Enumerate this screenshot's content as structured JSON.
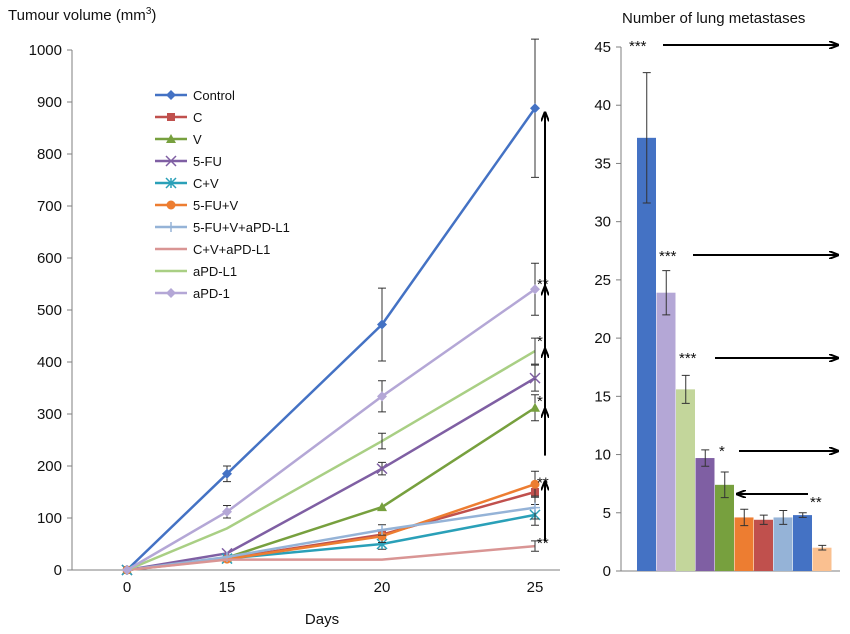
{
  "chart_data": [
    {
      "type": "line",
      "title": "Tumour volume (mm",
      "title_sup": "3",
      "title_close": ")",
      "xlabel": "Days",
      "ylabel": "",
      "categories": [
        "0",
        "15",
        "20",
        "25"
      ],
      "ylim": [
        0,
        1000
      ],
      "yticks": [
        "0",
        "100",
        "200",
        "300",
        "400",
        "500",
        "600",
        "700",
        "800",
        "900",
        "1000"
      ],
      "legend_position": "top-left",
      "series": [
        {
          "name": "Control",
          "color": "#4472c4",
          "marker": "diamond",
          "values": [
            0,
            185,
            472,
            888
          ],
          "errors": [
            0,
            15,
            70,
            133
          ]
        },
        {
          "name": "C",
          "color": "#c0504d",
          "marker": "square",
          "values": [
            0,
            22,
            68,
            150
          ],
          "errors": [
            0,
            0,
            0,
            0
          ]
        },
        {
          "name": "V",
          "color": "#77a03e",
          "marker": "triangle",
          "values": [
            0,
            24,
            121,
            312
          ],
          "errors": [
            0,
            0,
            0,
            25
          ]
        },
        {
          "name": "5-FU",
          "color": "#7f5fa3",
          "marker": "x",
          "values": [
            0,
            32,
            195,
            369
          ],
          "errors": [
            0,
            0,
            12,
            25
          ]
        },
        {
          "name": "C+V",
          "color": "#2aa0b8",
          "marker": "star",
          "values": [
            0,
            22,
            50,
            106
          ],
          "errors": [
            0,
            0,
            10,
            20
          ]
        },
        {
          "name": "5-FU+V",
          "color": "#ed7d31",
          "marker": "circle",
          "values": [
            0,
            21,
            65,
            165
          ],
          "errors": [
            0,
            0,
            12,
            25
          ]
        },
        {
          "name": "5-FU+V+aPD-L1",
          "color": "#95b3d7",
          "marker": "plus",
          "values": [
            0,
            25,
            77,
            120
          ],
          "errors": [
            0,
            0,
            10,
            22
          ]
        },
        {
          "name": "C+V+aPD-L1",
          "color": "#d99594",
          "marker": "none",
          "values": [
            0,
            20,
            20,
            46
          ],
          "errors": [
            0,
            0,
            0,
            10
          ]
        },
        {
          "name": "aPD-L1",
          "color": "#a9cf84",
          "marker": "none",
          "values": [
            0,
            80,
            248,
            421
          ],
          "errors": [
            0,
            0,
            15,
            25
          ]
        },
        {
          "name": "aPD-1",
          "color": "#b4a7d6",
          "marker": "diamond",
          "values": [
            0,
            112,
            334,
            540
          ],
          "errors": [
            0,
            12,
            30,
            50
          ]
        }
      ],
      "annotations": [
        {
          "text": "**",
          "y": 550
        },
        {
          "text": "*",
          "y": 440
        },
        {
          "text": "*",
          "y": 325
        },
        {
          "text": "**",
          "y": 168
        },
        {
          "text": "**",
          "y": 52
        }
      ]
    },
    {
      "type": "bar",
      "title": "Number of lung metastases",
      "xlabel": "",
      "ylabel": "",
      "ylim": [
        0,
        45
      ],
      "yticks": [
        "0",
        "5",
        "10",
        "15",
        "20",
        "25",
        "30",
        "35",
        "40",
        "45"
      ],
      "values": [
        37.2,
        23.9,
        15.6,
        9.7,
        7.4,
        4.6,
        4.4,
        4.6,
        4.8,
        2.0
      ],
      "errors": [
        5.6,
        1.9,
        1.2,
        0.7,
        1.1,
        0.7,
        0.4,
        0.6,
        0.2,
        0.2
      ],
      "colors": [
        "#4472c4",
        "#b4a7d6",
        "#c3d69b",
        "#7f5fa3",
        "#77a03e",
        "#ed7d31",
        "#c0504d",
        "#95b3d7",
        "#4472c4",
        "#fac090"
      ],
      "annotations": [
        {
          "text": "***",
          "y": 45
        },
        {
          "text": "***",
          "y": 27
        },
        {
          "text": "***",
          "y": 18
        },
        {
          "text": "*",
          "y": 10
        },
        {
          "text": "**",
          "y": 6
        }
      ]
    }
  ]
}
